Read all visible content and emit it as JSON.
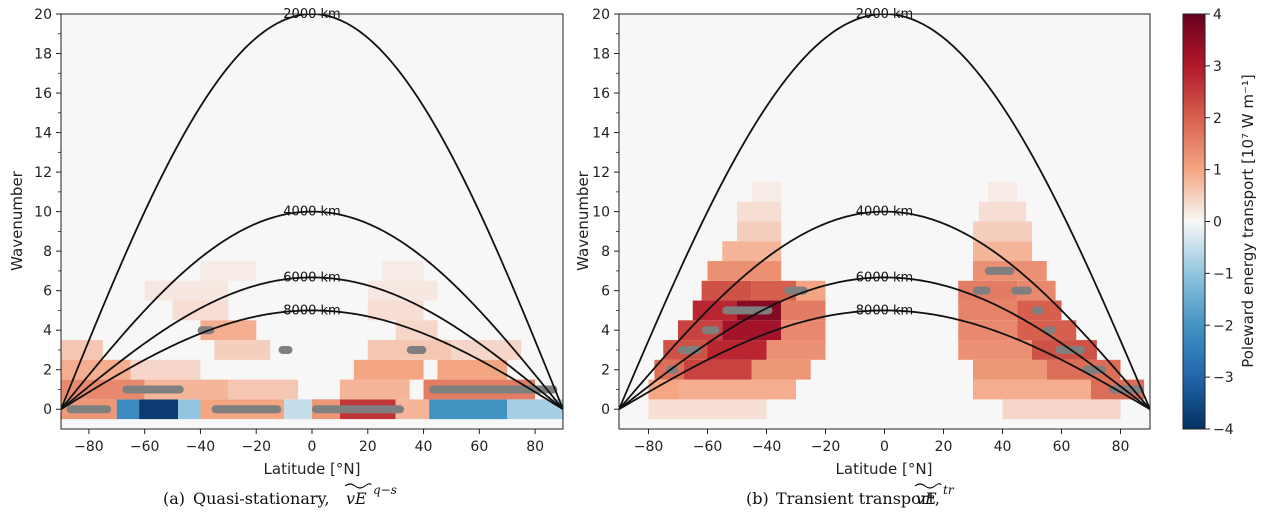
{
  "chart_data": [
    {
      "type": "heatmap",
      "panel": "a",
      "caption_prefix": "(a)",
      "caption_text": "Quasi-stationary,",
      "caption_symbol": "vE",
      "caption_sup": "q−s",
      "xlabel": "Latitude [°N]",
      "ylabel": "Wavenumber",
      "xlim": [
        -90,
        90
      ],
      "ylim": [
        -1,
        20
      ],
      "xticks": [
        -80,
        -60,
        -40,
        -20,
        0,
        20,
        40,
        60,
        80
      ],
      "yticks": [
        0,
        2,
        4,
        6,
        8,
        10,
        12,
        14,
        16,
        18,
        20
      ],
      "contour_labels": [
        "2000 km",
        "4000 km",
        "6000 km",
        "8000 km"
      ],
      "contour_label_lat": [
        0,
        0,
        0,
        0
      ],
      "contour_peaks": [
        20,
        10,
        6.67,
        5
      ],
      "cells": [
        {
          "k": 0,
          "lat": [
            -90,
            -70
          ],
          "v": 1.2
        },
        {
          "k": 0,
          "lat": [
            -70,
            -62
          ],
          "v": -2.2
        },
        {
          "k": 0,
          "lat": [
            -62,
            -48
          ],
          "v": -3.8
        },
        {
          "k": 0,
          "lat": [
            -48,
            -40
          ],
          "v": -1.0
        },
        {
          "k": 0,
          "lat": [
            -40,
            -10
          ],
          "v": 1.0
        },
        {
          "k": 0,
          "lat": [
            -10,
            0
          ],
          "v": -0.5
        },
        {
          "k": 0,
          "lat": [
            0,
            10
          ],
          "v": 1.2
        },
        {
          "k": 0,
          "lat": [
            10,
            30
          ],
          "v": 2.6
        },
        {
          "k": 0,
          "lat": [
            30,
            42
          ],
          "v": 0.8
        },
        {
          "k": 0,
          "lat": [
            42,
            70
          ],
          "v": -2.0
        },
        {
          "k": 0,
          "lat": [
            70,
            90
          ],
          "v": -0.8
        },
        {
          "k": 1,
          "lat": [
            -90,
            -60
          ],
          "v": 1.4
        },
        {
          "k": 1,
          "lat": [
            -60,
            -30
          ],
          "v": 0.8
        },
        {
          "k": 1,
          "lat": [
            -30,
            -5
          ],
          "v": 0.6
        },
        {
          "k": 1,
          "lat": [
            10,
            35
          ],
          "v": 0.8
        },
        {
          "k": 1,
          "lat": [
            40,
            80
          ],
          "v": 1.6
        },
        {
          "k": 2,
          "lat": [
            -90,
            -65
          ],
          "v": 0.9
        },
        {
          "k": 2,
          "lat": [
            -65,
            -40
          ],
          "v": 0.4
        },
        {
          "k": 2,
          "lat": [
            15,
            40
          ],
          "v": 1.0
        },
        {
          "k": 2,
          "lat": [
            45,
            70
          ],
          "v": 1.0
        },
        {
          "k": 3,
          "lat": [
            -90,
            -75
          ],
          "v": 0.6
        },
        {
          "k": 3,
          "lat": [
            -35,
            -15
          ],
          "v": 0.5
        },
        {
          "k": 3,
          "lat": [
            20,
            50
          ],
          "v": 0.6
        },
        {
          "k": 3,
          "lat": [
            50,
            75
          ],
          "v": 0.4
        },
        {
          "k": 4,
          "lat": [
            -40,
            -20
          ],
          "v": 0.9
        },
        {
          "k": 4,
          "lat": [
            30,
            45
          ],
          "v": 0.4
        },
        {
          "k": 5,
          "lat": [
            -50,
            -30
          ],
          "v": 0.3
        },
        {
          "k": 5,
          "lat": [
            20,
            40
          ],
          "v": 0.3
        },
        {
          "k": 6,
          "lat": [
            -60,
            -30
          ],
          "v": 0.2
        },
        {
          "k": 6,
          "lat": [
            20,
            45
          ],
          "v": 0.2
        },
        {
          "k": 7,
          "lat": [
            -40,
            -20
          ],
          "v": 0.15
        },
        {
          "k": 7,
          "lat": [
            25,
            40
          ],
          "v": 0.15
        }
      ],
      "maxima": [
        {
          "k": 0,
          "lat": [
            -88,
            -72
          ]
        },
        {
          "k": 1,
          "lat": [
            -68,
            -46
          ]
        },
        {
          "k": 4,
          "lat": [
            -41,
            -35
          ]
        },
        {
          "k": 3,
          "lat": [
            -12,
            -7
          ]
        },
        {
          "k": 0,
          "lat": [
            -36,
            -11
          ]
        },
        {
          "k": 0,
          "lat": [
            0,
            33
          ]
        },
        {
          "k": 3,
          "lat": [
            34,
            41
          ]
        },
        {
          "k": 1,
          "lat": [
            42,
            88
          ]
        }
      ]
    },
    {
      "type": "heatmap",
      "panel": "b",
      "caption_prefix": "(b)",
      "caption_text": "Transient transport,",
      "caption_symbol": "vE",
      "caption_sup": "tr",
      "xlabel": "Latitude [°N]",
      "ylabel": "Wavenumber",
      "xlim": [
        -90,
        90
      ],
      "ylim": [
        -1,
        20
      ],
      "xticks": [
        -80,
        -60,
        -40,
        -20,
        0,
        20,
        40,
        60,
        80
      ],
      "yticks": [
        0,
        2,
        4,
        6,
        8,
        10,
        12,
        14,
        16,
        18,
        20
      ],
      "contour_labels": [
        "2000 km",
        "4000 km",
        "6000 km",
        "8000 km"
      ],
      "contour_label_lat": [
        0,
        0,
        0,
        0
      ],
      "contour_peaks": [
        20,
        10,
        6.67,
        5
      ],
      "cells": [
        {
          "k": 0,
          "lat": [
            -80,
            -40
          ],
          "v": 0.3
        },
        {
          "k": 0,
          "lat": [
            40,
            80
          ],
          "v": 0.4
        },
        {
          "k": 1,
          "lat": [
            -80,
            -70
          ],
          "v": 1.0
        },
        {
          "k": 1,
          "lat": [
            -70,
            -30
          ],
          "v": 0.9
        },
        {
          "k": 1,
          "lat": [
            30,
            70
          ],
          "v": 0.9
        },
        {
          "k": 1,
          "lat": [
            70,
            88
          ],
          "v": 1.8
        },
        {
          "k": 2,
          "lat": [
            -78,
            -68
          ],
          "v": 1.8
        },
        {
          "k": 2,
          "lat": [
            -68,
            -45
          ],
          "v": 2.4
        },
        {
          "k": 2,
          "lat": [
            -45,
            -25
          ],
          "v": 1.2
        },
        {
          "k": 2,
          "lat": [
            30,
            55
          ],
          "v": 1.2
        },
        {
          "k": 2,
          "lat": [
            55,
            80
          ],
          "v": 1.8
        },
        {
          "k": 3,
          "lat": [
            -75,
            -60
          ],
          "v": 2.2
        },
        {
          "k": 3,
          "lat": [
            -60,
            -40
          ],
          "v": 2.8
        },
        {
          "k": 3,
          "lat": [
            -40,
            -20
          ],
          "v": 1.3
        },
        {
          "k": 3,
          "lat": [
            25,
            50
          ],
          "v": 1.3
        },
        {
          "k": 3,
          "lat": [
            50,
            72
          ],
          "v": 2.2
        },
        {
          "k": 4,
          "lat": [
            -70,
            -55
          ],
          "v": 2.4
        },
        {
          "k": 4,
          "lat": [
            -55,
            -35
          ],
          "v": 3.2
        },
        {
          "k": 4,
          "lat": [
            -35,
            -20
          ],
          "v": 1.4
        },
        {
          "k": 4,
          "lat": [
            25,
            45
          ],
          "v": 1.4
        },
        {
          "k": 4,
          "lat": [
            45,
            65
          ],
          "v": 2.0
        },
        {
          "k": 5,
          "lat": [
            -65,
            -50
          ],
          "v": 2.8
        },
        {
          "k": 5,
          "lat": [
            -50,
            -35
          ],
          "v": 3.6
        },
        {
          "k": 5,
          "lat": [
            -35,
            -20
          ],
          "v": 1.6
        },
        {
          "k": 5,
          "lat": [
            25,
            45
          ],
          "v": 1.5
        },
        {
          "k": 5,
          "lat": [
            45,
            60
          ],
          "v": 2.0
        },
        {
          "k": 6,
          "lat": [
            -62,
            -45
          ],
          "v": 2.2
        },
        {
          "k": 6,
          "lat": [
            -45,
            -30
          ],
          "v": 2.0
        },
        {
          "k": 6,
          "lat": [
            -30,
            -20
          ],
          "v": 1.0
        },
        {
          "k": 6,
          "lat": [
            25,
            45
          ],
          "v": 1.6
        },
        {
          "k": 6,
          "lat": [
            45,
            58
          ],
          "v": 1.4
        },
        {
          "k": 7,
          "lat": [
            -60,
            -35
          ],
          "v": 1.3
        },
        {
          "k": 7,
          "lat": [
            30,
            55
          ],
          "v": 1.3
        },
        {
          "k": 8,
          "lat": [
            -55,
            -35
          ],
          "v": 0.8
        },
        {
          "k": 8,
          "lat": [
            30,
            50
          ],
          "v": 0.8
        },
        {
          "k": 9,
          "lat": [
            -50,
            -35
          ],
          "v": 0.5
        },
        {
          "k": 9,
          "lat": [
            30,
            50
          ],
          "v": 0.5
        },
        {
          "k": 10,
          "lat": [
            -50,
            -35
          ],
          "v": 0.3
        },
        {
          "k": 10,
          "lat": [
            32,
            48
          ],
          "v": 0.3
        },
        {
          "k": 11,
          "lat": [
            -45,
            -35
          ],
          "v": 0.15
        },
        {
          "k": 11,
          "lat": [
            35,
            45
          ],
          "v": 0.15
        }
      ],
      "maxima": [
        {
          "k": 2,
          "lat": [
            -74,
            -70
          ]
        },
        {
          "k": 3,
          "lat": [
            -70,
            -62
          ]
        },
        {
          "k": 4,
          "lat": [
            -62,
            -56
          ]
        },
        {
          "k": 5,
          "lat": [
            -55,
            -38
          ]
        },
        {
          "k": 6,
          "lat": [
            -34,
            -26
          ]
        },
        {
          "k": 6,
          "lat": [
            30,
            36
          ]
        },
        {
          "k": 7,
          "lat": [
            34,
            44
          ]
        },
        {
          "k": 6,
          "lat": [
            43,
            50
          ]
        },
        {
          "k": 5,
          "lat": [
            50,
            54
          ]
        },
        {
          "k": 4,
          "lat": [
            54,
            58
          ]
        },
        {
          "k": 3,
          "lat": [
            58,
            68
          ]
        },
        {
          "k": 2,
          "lat": [
            67,
            75
          ]
        },
        {
          "k": 1,
          "lat": [
            76,
            88
          ]
        }
      ]
    }
  ],
  "colorbar": {
    "label": "Poleward energy transport [10⁷ W m⁻¹]",
    "min": -4,
    "max": 4,
    "ticks": [
      4,
      3,
      2,
      1,
      0,
      -1,
      -2,
      -3,
      -4
    ],
    "tick_labels": [
      "4",
      "3",
      "2",
      "1",
      "0",
      "−1",
      "−2",
      "−3",
      "−4"
    ]
  },
  "colors": {
    "negative_max": "#0a3a78",
    "neutral": "#f7f7f7",
    "positive_max": "#7a0018",
    "contour": "#111111",
    "maxima": "#7f7f7f"
  }
}
